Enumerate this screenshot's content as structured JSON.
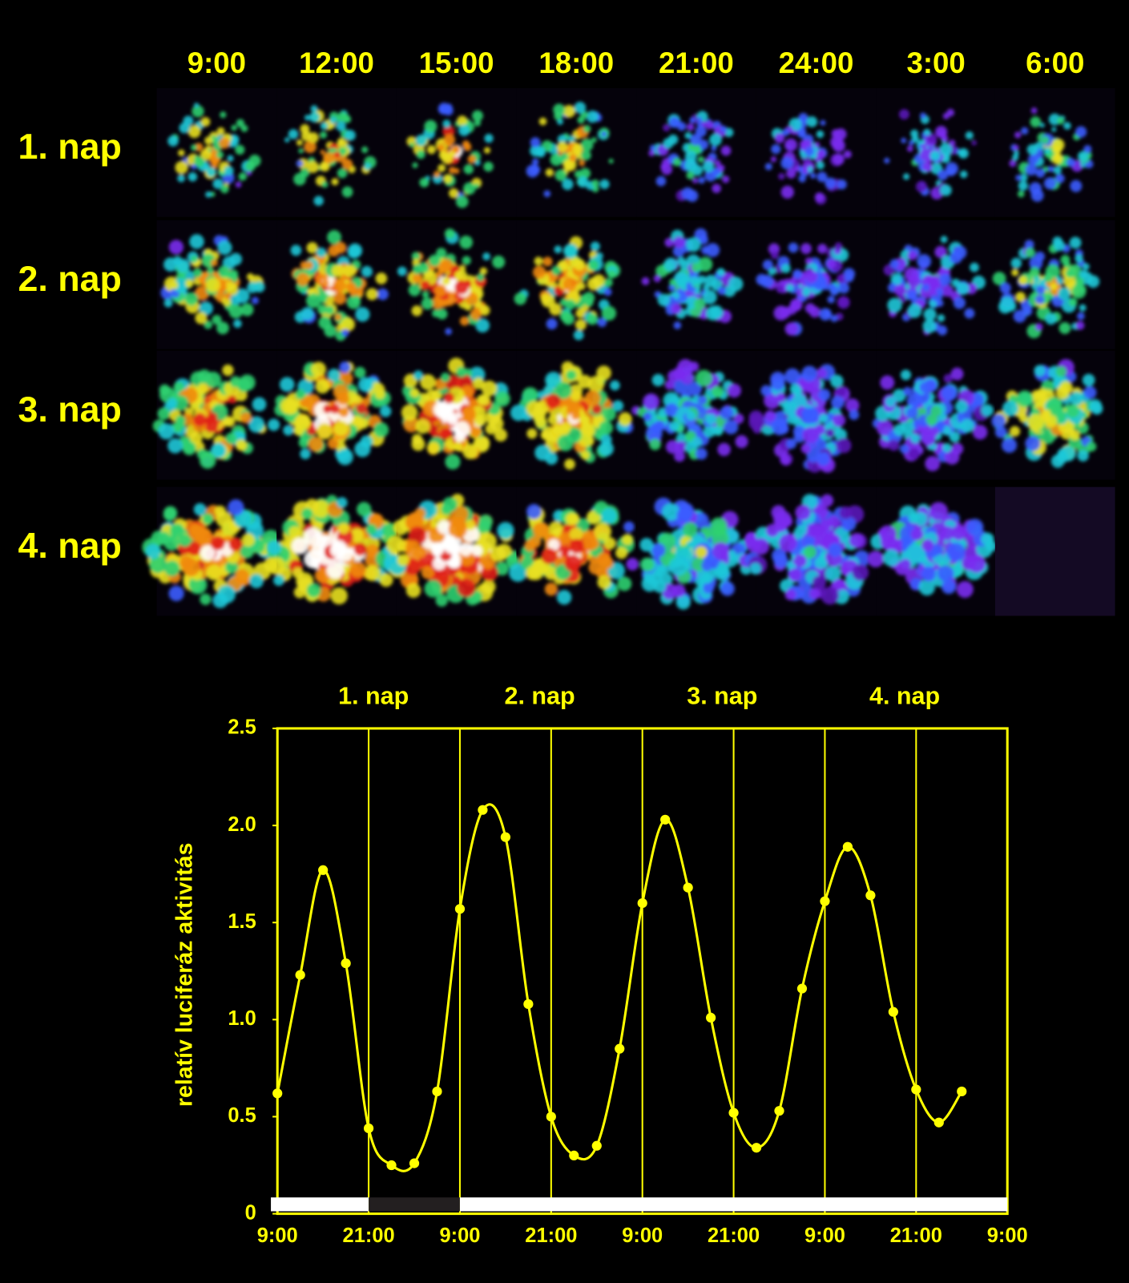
{
  "image_grid": {
    "columns": [
      "9:00",
      "12:00",
      "15:00",
      "18:00",
      "21:00",
      "24:00",
      "3:00",
      "6:00"
    ],
    "rows": [
      "1. nap",
      "2. nap",
      "3. nap",
      "4. nap"
    ]
  },
  "chart_data": {
    "type": "line",
    "ylabel": "relatív luciferáz aktivitás",
    "day_labels": [
      "1. nap",
      "2. nap",
      "3. nap",
      "4. nap"
    ],
    "x": [
      0,
      3,
      6,
      9,
      12,
      15,
      18,
      21,
      24,
      27,
      30,
      33,
      36,
      39,
      42,
      45,
      48,
      51,
      54,
      57,
      60,
      63,
      66,
      69,
      72,
      75,
      78,
      81,
      84,
      87,
      90
    ],
    "series": [
      {
        "name": "luciferáz",
        "color": "#ffff00",
        "values": [
          0.62,
          1.23,
          1.77,
          1.29,
          0.44,
          0.25,
          0.26,
          0.63,
          1.57,
          2.08,
          1.94,
          1.08,
          0.5,
          0.3,
          0.35,
          0.85,
          1.6,
          2.03,
          1.68,
          1.01,
          0.52,
          0.34,
          0.53,
          1.16,
          1.61,
          1.89,
          1.64,
          1.04,
          0.64,
          0.47,
          0.63
        ]
      }
    ],
    "xlim": [
      0,
      96
    ],
    "xticks": [
      {
        "value": 0,
        "label": "9:00"
      },
      {
        "value": 12,
        "label": "21:00"
      },
      {
        "value": 24,
        "label": "9:00"
      },
      {
        "value": 36,
        "label": "21:00"
      },
      {
        "value": 48,
        "label": "9:00"
      },
      {
        "value": 60,
        "label": "21:00"
      },
      {
        "value": 72,
        "label": "9:00"
      },
      {
        "value": 84,
        "label": "21:00"
      },
      {
        "value": 96,
        "label": "9:00"
      }
    ],
    "ylim": [
      0,
      2.5
    ],
    "yticks": [
      0,
      0.5,
      {
        "value": 1,
        "label": "1.0"
      },
      1.5,
      {
        "value": 2,
        "label": "2.0"
      },
      2.5
    ],
    "grid": true,
    "light_bar": [
      {
        "start": 0,
        "end": 12,
        "color": "#ffffff"
      },
      {
        "start": 12,
        "end": 24,
        "color": "#231f20"
      },
      {
        "start": 24,
        "end": 96,
        "color": "#ffffff"
      }
    ]
  }
}
